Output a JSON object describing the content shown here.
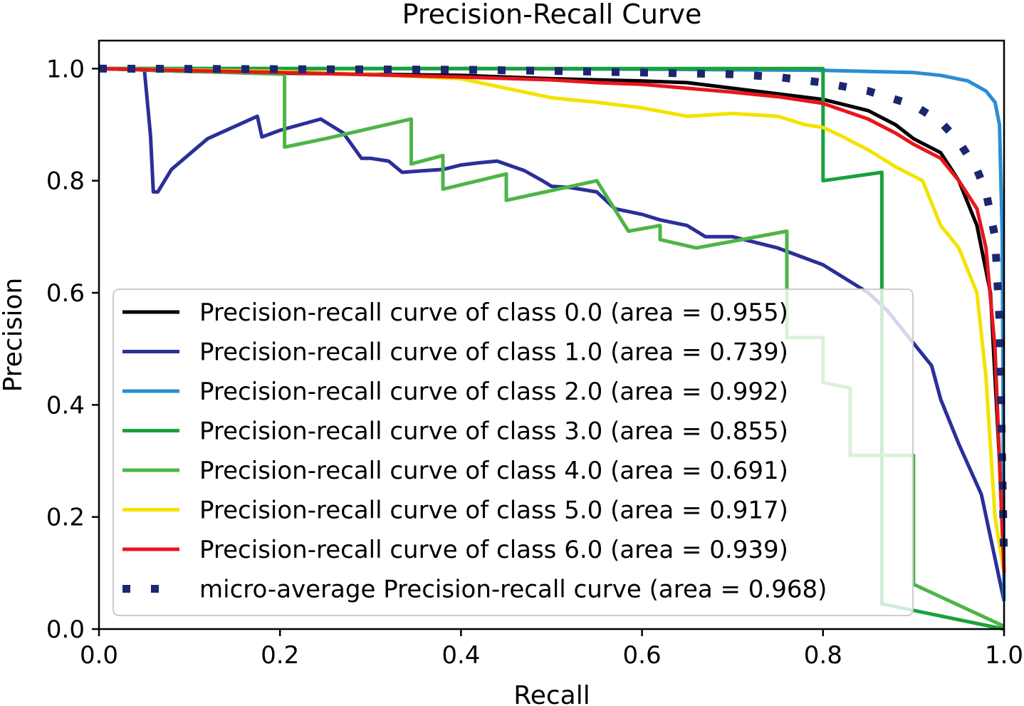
{
  "chart_data": {
    "type": "line",
    "title": "Precision-Recall Curve",
    "xlabel": "Recall",
    "ylabel": "Precision",
    "xlim": [
      0.0,
      1.0
    ],
    "ylim": [
      0.0,
      1.05
    ],
    "xticks": [
      "0.0",
      "0.2",
      "0.4",
      "0.6",
      "0.8",
      "1.0"
    ],
    "yticks": [
      "0.0",
      "0.2",
      "0.4",
      "0.6",
      "0.8",
      "1.0"
    ],
    "grid": false,
    "legend_position": "lower-left",
    "series": [
      {
        "name": "Precision-recall curve of class 0.0 (area = 0.955)",
        "color": "#000000",
        "style": "solid",
        "x": [
          0.0,
          0.1,
          0.2,
          0.3,
          0.4,
          0.5,
          0.6,
          0.65,
          0.7,
          0.75,
          0.8,
          0.85,
          0.88,
          0.9,
          0.93,
          0.95,
          0.97,
          0.985,
          0.995,
          1.0
        ],
        "y": [
          1.0,
          0.995,
          0.992,
          0.99,
          0.988,
          0.982,
          0.978,
          0.975,
          0.965,
          0.955,
          0.945,
          0.925,
          0.9,
          0.875,
          0.85,
          0.8,
          0.72,
          0.6,
          0.3,
          0.1
        ]
      },
      {
        "name": "Precision-recall curve of class 1.0 (area = 0.739)",
        "color": "#2b2f99",
        "style": "solid",
        "x": [
          0.0,
          0.05,
          0.057,
          0.06,
          0.065,
          0.08,
          0.12,
          0.175,
          0.18,
          0.2,
          0.245,
          0.27,
          0.29,
          0.3,
          0.32,
          0.335,
          0.36,
          0.38,
          0.4,
          0.42,
          0.44,
          0.47,
          0.49,
          0.5,
          0.52,
          0.55,
          0.57,
          0.6,
          0.62,
          0.65,
          0.67,
          0.7,
          0.75,
          0.8,
          0.82,
          0.85,
          0.87,
          0.9,
          0.92,
          0.93,
          0.95,
          0.975,
          1.0
        ],
        "y": [
          1.0,
          1.0,
          0.88,
          0.78,
          0.78,
          0.82,
          0.875,
          0.915,
          0.878,
          0.89,
          0.91,
          0.885,
          0.84,
          0.84,
          0.835,
          0.815,
          0.818,
          0.82,
          0.828,
          0.832,
          0.835,
          0.818,
          0.8,
          0.79,
          0.788,
          0.78,
          0.75,
          0.74,
          0.73,
          0.72,
          0.7,
          0.7,
          0.68,
          0.65,
          0.63,
          0.6,
          0.57,
          0.51,
          0.47,
          0.41,
          0.33,
          0.24,
          0.05
        ]
      },
      {
        "name": "Precision-recall curve of class 2.0 (area = 0.992)",
        "color": "#2a8dd5",
        "style": "solid",
        "x": [
          0.0,
          0.2,
          0.4,
          0.6,
          0.8,
          0.9,
          0.93,
          0.96,
          0.98,
          0.99,
          0.995,
          0.998,
          1.0
        ],
        "y": [
          1.0,
          1.0,
          1.0,
          0.999,
          0.997,
          0.993,
          0.988,
          0.978,
          0.96,
          0.94,
          0.9,
          0.7,
          0.05
        ]
      },
      {
        "name": "Precision-recall curve of class 3.0 (area = 0.855)",
        "color": "#18a23d",
        "style": "solid",
        "x": [
          0.0,
          0.5,
          0.8,
          0.8,
          0.865,
          0.865,
          1.0
        ],
        "y": [
          1.0,
          1.0,
          1.0,
          0.8,
          0.815,
          0.045,
          0.0
        ]
      },
      {
        "name": "Precision-recall curve of class 4.0 (area = 0.691)",
        "color": "#4db547",
        "style": "solid",
        "x": [
          0.0,
          0.205,
          0.205,
          0.25,
          0.345,
          0.345,
          0.38,
          0.38,
          0.45,
          0.45,
          0.55,
          0.585,
          0.62,
          0.62,
          0.66,
          0.76,
          0.76,
          0.8,
          0.8,
          0.83,
          0.83,
          0.9,
          0.9,
          1.0
        ],
        "y": [
          1.0,
          0.99,
          0.86,
          0.875,
          0.91,
          0.83,
          0.845,
          0.785,
          0.812,
          0.765,
          0.8,
          0.71,
          0.72,
          0.695,
          0.68,
          0.71,
          0.52,
          0.52,
          0.44,
          0.43,
          0.31,
          0.31,
          0.08,
          0.005
        ]
      },
      {
        "name": "Precision-recall curve of class 5.0 (area = 0.917)",
        "color": "#f2e300",
        "style": "solid",
        "x": [
          0.0,
          0.2,
          0.3,
          0.4,
          0.45,
          0.5,
          0.55,
          0.6,
          0.65,
          0.7,
          0.75,
          0.78,
          0.8,
          0.82,
          0.85,
          0.88,
          0.91,
          0.93,
          0.95,
          0.97,
          0.98,
          0.99,
          1.0
        ],
        "y": [
          1.0,
          0.995,
          0.99,
          0.982,
          0.965,
          0.948,
          0.94,
          0.93,
          0.915,
          0.92,
          0.915,
          0.9,
          0.895,
          0.88,
          0.855,
          0.825,
          0.8,
          0.72,
          0.68,
          0.6,
          0.45,
          0.2,
          0.1
        ]
      },
      {
        "name": "Precision-recall curve of class 6.0 (area = 0.939)",
        "color": "#e8161c",
        "style": "solid",
        "x": [
          0.0,
          0.2,
          0.4,
          0.5,
          0.55,
          0.6,
          0.65,
          0.7,
          0.75,
          0.8,
          0.85,
          0.88,
          0.9,
          0.93,
          0.95,
          0.97,
          0.98,
          0.99,
          1.0
        ],
        "y": [
          1.0,
          0.993,
          0.985,
          0.98,
          0.975,
          0.972,
          0.965,
          0.958,
          0.95,
          0.938,
          0.91,
          0.885,
          0.865,
          0.84,
          0.8,
          0.75,
          0.68,
          0.5,
          0.1
        ]
      },
      {
        "name": "micro-average Precision-recall curve (area = 0.968)",
        "color": "#1c2670",
        "style": "dotted",
        "x": [
          0.0,
          0.2,
          0.4,
          0.5,
          0.6,
          0.7,
          0.75,
          0.8,
          0.85,
          0.9,
          0.93,
          0.95,
          0.97,
          0.98,
          0.99,
          0.995,
          1.0
        ],
        "y": [
          1.0,
          0.999,
          0.998,
          0.996,
          0.993,
          0.99,
          0.985,
          0.975,
          0.96,
          0.935,
          0.905,
          0.87,
          0.82,
          0.78,
          0.7,
          0.55,
          0.12
        ]
      }
    ]
  }
}
